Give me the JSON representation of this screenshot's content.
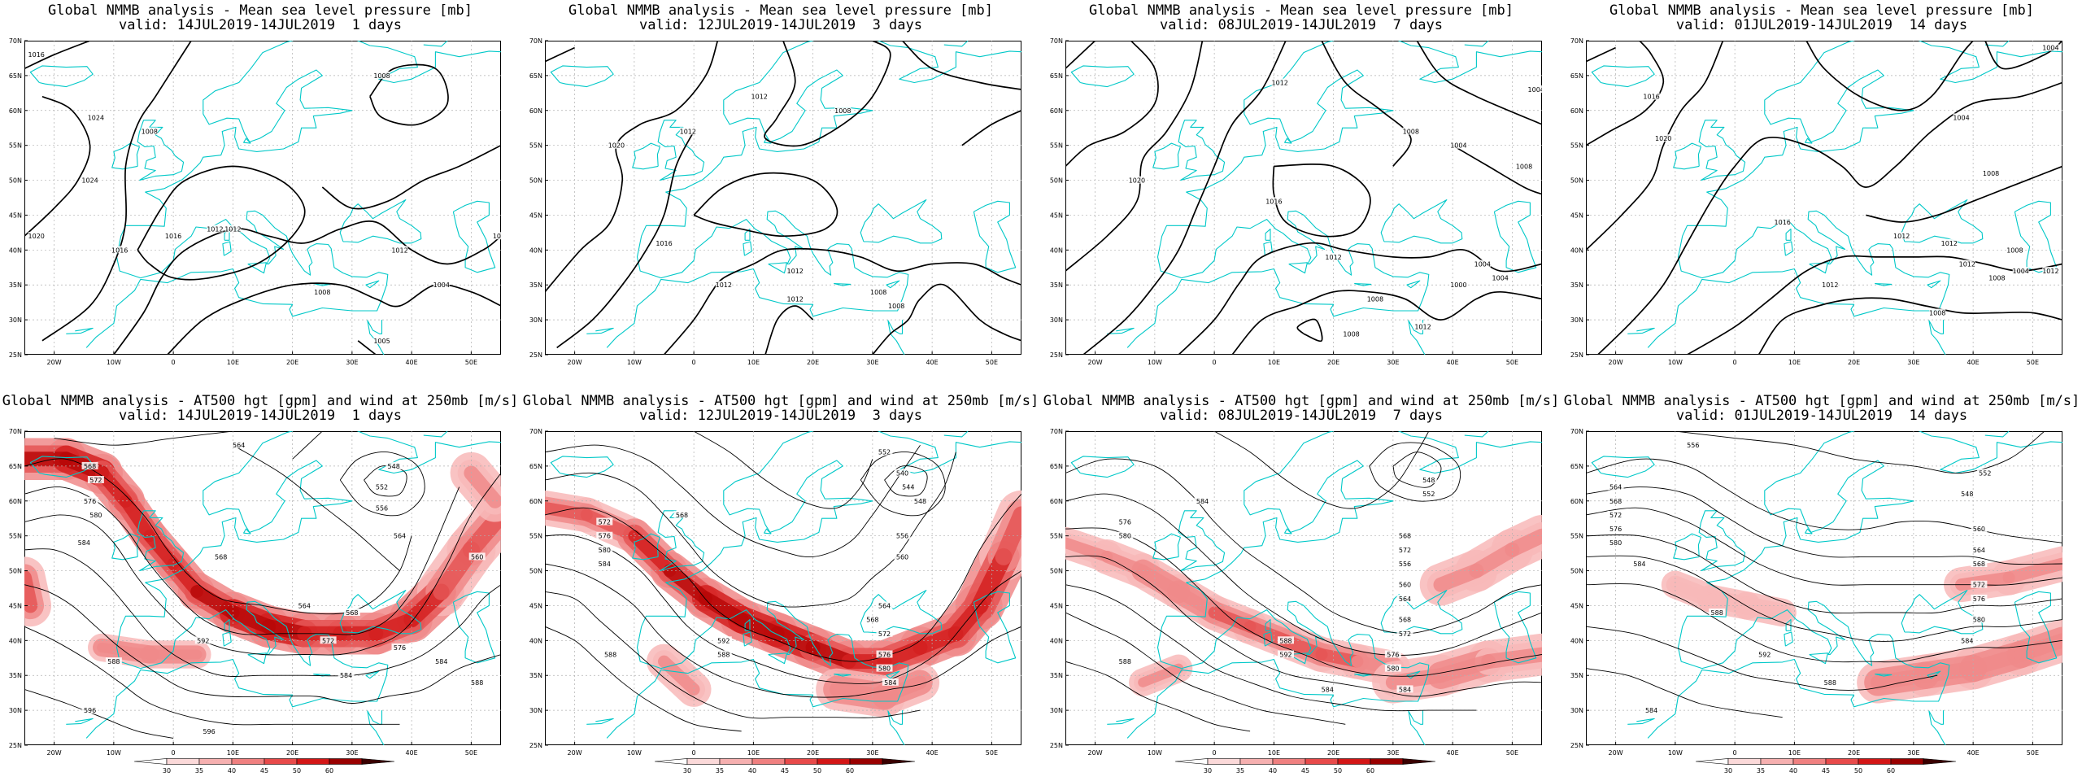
{
  "axes": {
    "lat_labels": [
      "25N",
      "30N",
      "35N",
      "40N",
      "45N",
      "50N",
      "55N",
      "60N",
      "65N",
      "70N"
    ],
    "lon_labels": [
      "20W",
      "10W",
      "0",
      "10E",
      "20E",
      "30E",
      "40E",
      "50E"
    ]
  },
  "colorbar": {
    "labels": [
      "30",
      "35",
      "40",
      "45",
      "50",
      "60"
    ],
    "colors": [
      "#ffffff",
      "#fbd9d9",
      "#f6b0b0",
      "#f08080",
      "#e84a4a",
      "#d41616",
      "#9a0000",
      "#3a0000"
    ]
  },
  "colors": {
    "coast": "#00c8c8",
    "contour": "#000000",
    "grid": "#b0b0b0"
  },
  "panels": [
    {
      "type": "mslp",
      "title": "Global NMMB analysis - Mean sea level pressure [mb]",
      "subtitle": "valid: 14JUL2019-14JUL2019  1 days",
      "labels": [
        "1016",
        "1024",
        "1008",
        "1024",
        "1016",
        "1012",
        "1020",
        "1016",
        "1008",
        "1012",
        "1004",
        "1008",
        "1008",
        "1012",
        "1005"
      ]
    },
    {
      "type": "mslp",
      "title": "Global NMMB analysis - Mean sea level pressure [mb]",
      "subtitle": "valid: 12JUL2019-14JUL2019  3 days",
      "labels": [
        "1012",
        "1020",
        "1012",
        "1008",
        "1016",
        "1012",
        "1008",
        "1012",
        "1012",
        "1008"
      ]
    },
    {
      "type": "mslp",
      "title": "Global NMMB analysis - Mean sea level pressure [mb]",
      "subtitle": "valid: 08JUL2019-14JUL2019  7 days",
      "labels": [
        "1004",
        "1012",
        "1008",
        "1020",
        "1004",
        "1016",
        "1008",
        "1012",
        "1008",
        "1004",
        "1004",
        "1000",
        "1008",
        "1012"
      ]
    },
    {
      "type": "mslp",
      "title": "Global NMMB analysis - Mean sea level pressure [mb]",
      "subtitle": "valid: 01JUL2019-14JUL2019  14 days",
      "labels": [
        "1004",
        "1016",
        "1004",
        "1020",
        "1008",
        "1016",
        "1012",
        "1012",
        "1012",
        "1008",
        "1004",
        "1008",
        "1012",
        "1012",
        "1008"
      ]
    },
    {
      "type": "z500",
      "title": "Global NMMB analysis - AT500 hgt [gpm] and wind at 250mb [m/s]",
      "subtitle": "valid: 14JUL2019-14JUL2019  1 days",
      "labels": [
        "568",
        "572",
        "564",
        "576",
        "580",
        "584",
        "548",
        "552",
        "556",
        "568",
        "564",
        "564",
        "560",
        "568",
        "572",
        "576",
        "588",
        "592",
        "584",
        "584",
        "588",
        "596",
        "596"
      ]
    },
    {
      "type": "z500",
      "title": "Global NMMB analysis - AT500 hgt [gpm] and wind at 250mb [m/s]",
      "subtitle": "valid: 12JUL2019-14JUL2019  3 days",
      "labels": [
        "552",
        "568",
        "540",
        "544",
        "548",
        "572",
        "576",
        "580",
        "584",
        "556",
        "560",
        "564",
        "568",
        "572",
        "576",
        "580",
        "584",
        "592",
        "588",
        "588"
      ]
    },
    {
      "type": "z500",
      "title": "Global NMMB analysis - AT500 hgt [gpm] and wind at 250mb [m/s]",
      "subtitle": "valid: 08JUL2019-14JUL2019  7 days",
      "labels": [
        "548",
        "552",
        "584",
        "568",
        "572",
        "576",
        "580",
        "556",
        "560",
        "564",
        "568",
        "572",
        "576",
        "580",
        "584",
        "588",
        "592",
        "588",
        "584"
      ]
    },
    {
      "type": "z500",
      "title": "Global NMMB analysis - AT500 hgt [gpm] and wind at 250mb [m/s]",
      "subtitle": "valid: 01JUL2019-14JUL2019  14 days",
      "labels": [
        "556",
        "552",
        "548",
        "564",
        "568",
        "572",
        "576",
        "580",
        "584",
        "560",
        "564",
        "568",
        "572",
        "576",
        "580",
        "584",
        "588",
        "592",
        "584",
        "588"
      ]
    }
  ]
}
